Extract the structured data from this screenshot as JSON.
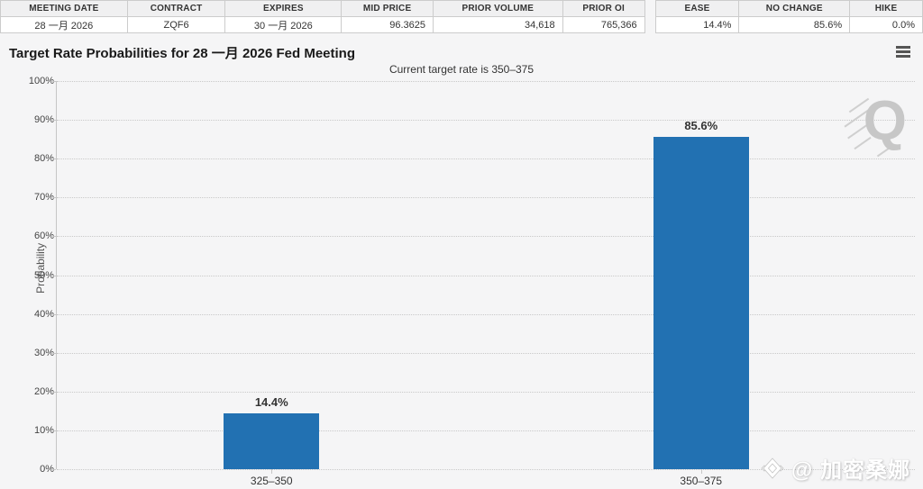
{
  "tables": {
    "contract_table": {
      "headers": [
        "MEETING DATE",
        "CONTRACT",
        "EXPIRES",
        "MID PRICE",
        "PRIOR VOLUME",
        "PRIOR OI"
      ],
      "values": [
        "28 一月 2026",
        "ZQF6",
        "30 一月 2026",
        "96.3625",
        "34,618",
        "765,366"
      ]
    },
    "probability_table": {
      "headers": [
        "EASE",
        "NO CHANGE",
        "HIKE"
      ],
      "values": [
        "14.4%",
        "85.6%",
        "0.0%"
      ]
    }
  },
  "chart": {
    "title": "Target Rate Probabilities for 28 一月 2026 Fed Meeting",
    "subtitle": "Current target rate is 350–375",
    "menu_icon": "hamburger-icon"
  },
  "chart_data": {
    "type": "bar",
    "categories": [
      "325–350",
      "350–375"
    ],
    "values": [
      14.4,
      85.6
    ],
    "value_labels": [
      "14.4%",
      "85.6%"
    ],
    "title": "Target Rate Probabilities for 28 一月 2026 Fed Meeting",
    "subtitle": "Current target rate is 350–375",
    "xlabel": "",
    "ylabel": "Probability",
    "ylim": [
      0,
      100
    ],
    "ytick_step": 10,
    "ytick_suffix": "%",
    "bar_color": "#2271b2",
    "grid": "dotted horizontal",
    "legend": "none"
  },
  "watermarks": {
    "logo_letter": "Q",
    "credit": "@ 加密桑娜"
  },
  "colors": {
    "bar": "#2271b2",
    "background": "#f5f5f6",
    "grid": "#c9c9c9",
    "table_header_bg": "#f0f0f1",
    "watermark_gray": "#c7c7c7"
  }
}
